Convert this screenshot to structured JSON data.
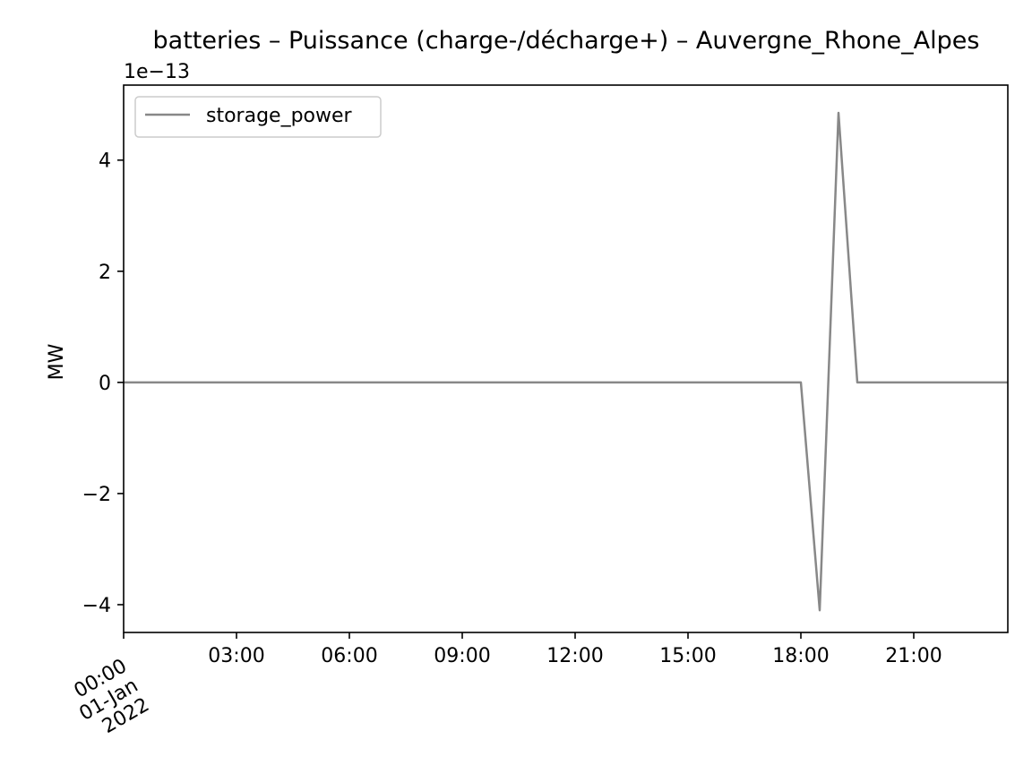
{
  "chart_data": {
    "type": "line",
    "title": "batteries – Puissance (charge-/décharge+) – Auvergne_Rhone_Alpes",
    "xlabel": "",
    "ylabel": "MW",
    "y_offset_label": "1e−13",
    "y_scale_factor": 1e-13,
    "x_range": [
      "2022-01-01 00:00",
      "2022-01-01 23:30"
    ],
    "ylim": [
      -4.5,
      5.35
    ],
    "y_ticks": [
      -4,
      -2,
      0,
      2,
      4
    ],
    "y_tick_labels": [
      "−4",
      "−2",
      "0",
      "2",
      "4"
    ],
    "x_ticks": [
      {
        "time": "2022-01-01 00:00",
        "label": "00:00\n01-Jan\n2022"
      },
      {
        "time": "2022-01-01 03:00",
        "label": "03:00"
      },
      {
        "time": "2022-01-01 06:00",
        "label": "06:00"
      },
      {
        "time": "2022-01-01 09:00",
        "label": "09:00"
      },
      {
        "time": "2022-01-01 12:00",
        "label": "12:00"
      },
      {
        "time": "2022-01-01 15:00",
        "label": "15:00"
      },
      {
        "time": "2022-01-01 18:00",
        "label": "18:00"
      },
      {
        "time": "2022-01-01 21:00",
        "label": "21:00"
      }
    ],
    "grid": false,
    "legend_position": "upper-left",
    "series": [
      {
        "name": "storage_power",
        "color": "#888888",
        "points": [
          {
            "t": "2022-01-01 00:00",
            "y": 0
          },
          {
            "t": "2022-01-01 18:00",
            "y": 0
          },
          {
            "t": "2022-01-01 18:30",
            "y": -4.1
          },
          {
            "t": "2022-01-01 19:00",
            "y": 4.85
          },
          {
            "t": "2022-01-01 19:30",
            "y": 0
          },
          {
            "t": "2022-01-01 23:30",
            "y": 0
          }
        ]
      }
    ]
  }
}
